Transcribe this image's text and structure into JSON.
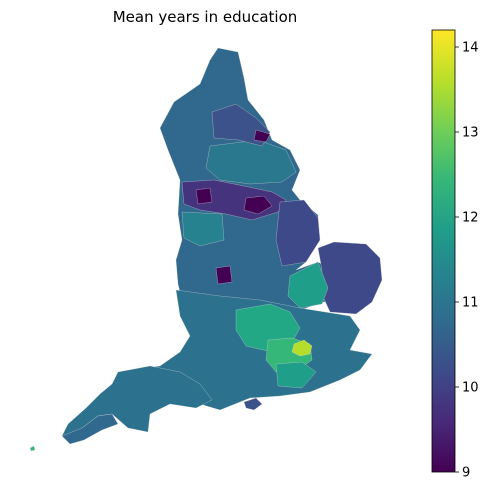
{
  "title": "Mean years in education",
  "colorbar": {
    "colormap": "viridis",
    "min": 9.0,
    "max": 14.2,
    "ticks": [
      9,
      10,
      11,
      12,
      13,
      14
    ],
    "colors": [
      "#440154",
      "#482878",
      "#3e4989",
      "#31688e",
      "#26828e",
      "#1f9e89",
      "#35b779",
      "#6ece58",
      "#b5de2b",
      "#fde725"
    ]
  },
  "map": {
    "region": "England",
    "unit_fill_colors": {
      "north_west_low_area": "#44105a",
      "north_east_coast": "#3b528b",
      "north_main": "#31688e",
      "yorkshire_dales": "#2a788e",
      "lincolnshire": "#3b528b",
      "east_anglia": "#3b528b",
      "south_east_main": "#2c728e",
      "oxford_cambridge_belt": "#22a884",
      "london_centre": "#b5de2b",
      "south_west": "#2c728e",
      "cornwall_devon": "#31688e"
    }
  }
}
